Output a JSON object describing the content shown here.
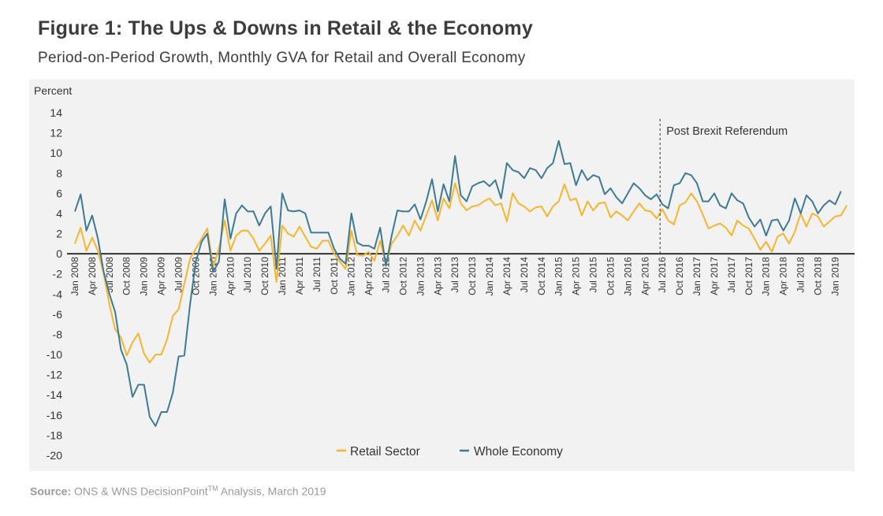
{
  "title": "Figure 1: The Ups & Downs in Retail & the Economy",
  "subtitle": "Period-on-Period Growth, Monthly GVA for Retail and Overall Economy",
  "source": {
    "label": "Source:",
    "text_before_tm": "ONS & WNS DecisionPoint",
    "tm": "TM",
    "text_after_tm": " Analysis, March 2019"
  },
  "colors": {
    "retail": "#f7b52c",
    "economy": "#3d7a95",
    "panel": "#f2f2f2",
    "zero_line": "#333333"
  },
  "chart_data": {
    "type": "line",
    "title": "Figure 1: The Ups & Downs in Retail & the Economy",
    "subtitle": "Period-on-Period Growth, Monthly GVA for Retail and Overall Economy",
    "xlabel": "",
    "ylabel": "Percent",
    "ylim": [
      -20,
      14
    ],
    "yticks": [
      14,
      12,
      10,
      8,
      6,
      4,
      2,
      0,
      -2,
      -4,
      -6,
      -8,
      -10,
      -12,
      -14,
      -16,
      -18,
      -20
    ],
    "x_start": "Jan 2008",
    "x_end": "Jan 2019",
    "frequency": "monthly",
    "xtick_labels": [
      "Jan 2008",
      "Apr 2008",
      "Jul 2008",
      "Oct 2008",
      "Jan 2009",
      "Apr 2009",
      "Jul 2009",
      "Oct 2009",
      "Jan 2010",
      "Apr 2010",
      "Jul 2010",
      "Oct 2010",
      "Jan 2011",
      "Apr 2011",
      "Jul 2011",
      "Oct 2011",
      "Jan 2012",
      "Apr 2012",
      "Jul 2012",
      "Oct 2012",
      "Jan 2013",
      "Apr 2013",
      "Jul 2013",
      "Oct 2013",
      "Jan 2014",
      "Apr 2014",
      "Jul 2014",
      "Oct 2014",
      "Jan 2015",
      "Apr 2015",
      "Jul 2015",
      "Oct 2015",
      "Jan 2016",
      "Apr 2016",
      "Jul 2016",
      "Oct 2016",
      "Jan 2017",
      "Apr 2017",
      "Jul 2017",
      "Oct 2017",
      "Jan 2018",
      "Apr 2018",
      "Jul 2018",
      "Oct 2018",
      "Jan 2019"
    ],
    "grid": false,
    "legend": "bottom-center",
    "annotations": [
      {
        "text": "Post Brexit Referendum",
        "x": "Jul 2016",
        "style": "dashed-vertical-line"
      }
    ],
    "series": [
      {
        "name": "Retail Sector",
        "color": "#f7b52c",
        "values": [
          1.0,
          2.6,
          0.3,
          1.6,
          0.3,
          -2.0,
          -5.0,
          -7.5,
          -8.3,
          -10.1,
          -8.8,
          -7.9,
          -9.9,
          -10.8,
          -10.0,
          -10.0,
          -8.5,
          -6.2,
          -5.5,
          -3.0,
          -0.5,
          0.5,
          1.5,
          2.5,
          -1.3,
          0.5,
          3.3,
          0.3,
          1.8,
          2.3,
          2.3,
          1.5,
          0.3,
          1.0,
          1.8,
          -2.8,
          2.8,
          2.0,
          1.7,
          2.7,
          1.7,
          0.7,
          0.5,
          1.3,
          1.3,
          0.0,
          -0.8,
          -1.5,
          2.3,
          -0.1,
          -0.2,
          0.2,
          -0.7,
          1.3,
          -1.0,
          1.0,
          1.8,
          2.8,
          1.8,
          3.3,
          2.3,
          3.8,
          5.3,
          3.3,
          5.5,
          4.5,
          7.0,
          5.0,
          4.3,
          4.7,
          4.8,
          5.2,
          5.5,
          4.8,
          5.0,
          3.2,
          6.0,
          5.0,
          4.7,
          4.2,
          4.6,
          4.7,
          3.7,
          4.7,
          5.2,
          6.9,
          5.3,
          5.5,
          3.8,
          5.2,
          4.3,
          5.0,
          5.1,
          3.6,
          4.2,
          3.8,
          3.3,
          4.2,
          5.0,
          4.3,
          4.2,
          3.5,
          4.4,
          3.3,
          2.9,
          4.8,
          5.1,
          6.0,
          5.2,
          3.9,
          2.5,
          2.8,
          3.0,
          2.6,
          1.8,
          3.3,
          2.8,
          2.5,
          1.5,
          0.4,
          1.2,
          0.2,
          1.7,
          2.0,
          1.0,
          2.2,
          4.0,
          2.7,
          4.0,
          3.7,
          2.7,
          3.2,
          3.7,
          3.8,
          4.8
        ]
      },
      {
        "name": "Whole Economy",
        "color": "#3d7a95",
        "values": [
          4.2,
          5.9,
          2.3,
          3.8,
          1.5,
          -1.8,
          -4.0,
          -5.8,
          -9.5,
          -11.0,
          -14.2,
          -13.0,
          -13.0,
          -16.2,
          -17.1,
          -15.7,
          -15.7,
          -13.8,
          -10.2,
          -10.1,
          -5.0,
          -0.8,
          1.2,
          2.0,
          -1.8,
          -0.8,
          5.4,
          1.5,
          4.0,
          4.8,
          4.2,
          4.2,
          2.8,
          4.0,
          4.7,
          -1.5,
          6.0,
          4.3,
          4.2,
          4.3,
          4.0,
          2.1,
          2.1,
          2.1,
          2.1,
          0.5,
          -0.5,
          -1.0,
          4.0,
          1.1,
          0.8,
          0.8,
          0.5,
          2.6,
          -1.2,
          1.8,
          4.3,
          4.2,
          4.2,
          4.9,
          3.4,
          5.2,
          7.4,
          4.2,
          6.9,
          5.2,
          9.7,
          5.8,
          5.2,
          6.7,
          7.0,
          7.2,
          6.7,
          7.3,
          5.5,
          9.0,
          8.3,
          8.1,
          7.5,
          8.5,
          8.3,
          7.5,
          8.5,
          9.0,
          11.2,
          8.9,
          9.0,
          6.8,
          8.3,
          7.3,
          7.8,
          7.6,
          5.9,
          6.5,
          5.6,
          5.0,
          6.0,
          7.0,
          6.5,
          5.8,
          5.4,
          5.9,
          4.9,
          4.5,
          6.8,
          7.0,
          8.0,
          7.8,
          7.0,
          5.2,
          5.2,
          6.0,
          4.8,
          4.5,
          6.0,
          5.3,
          5.0,
          3.6,
          2.7,
          3.4,
          1.8,
          3.3,
          3.4,
          2.3,
          3.3,
          5.5,
          4.0,
          5.8,
          5.2,
          4.0,
          4.8,
          5.3,
          4.9,
          6.2
        ]
      }
    ]
  }
}
